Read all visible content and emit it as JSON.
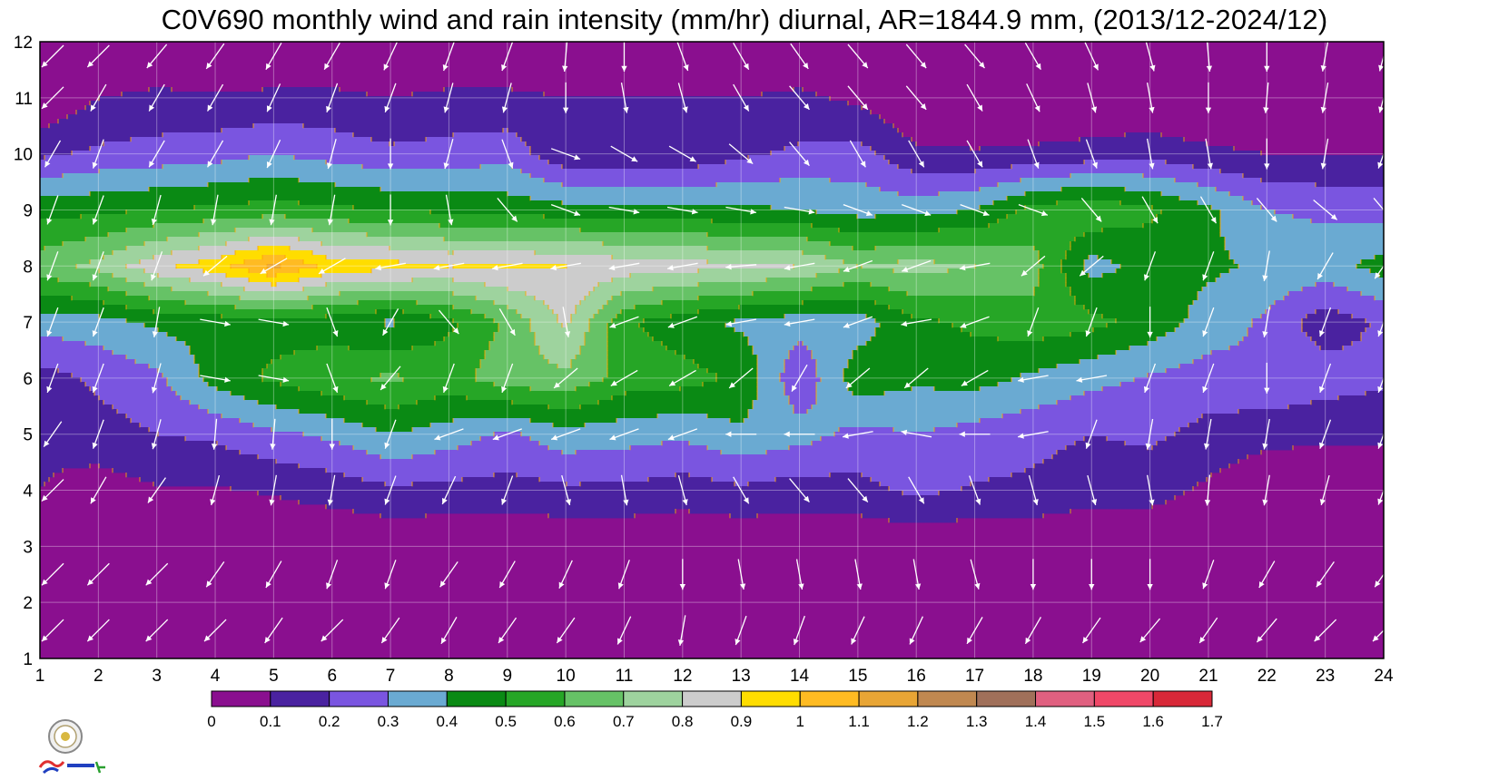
{
  "chart_data": {
    "type": "heatmap",
    "title": "C0V690 monthly wind and rain intensity (mm/hr) diurnal, AR=1844.9 mm, (2013/12-2024/12)",
    "xlabel": "",
    "ylabel": "",
    "x": [
      1,
      2,
      3,
      4,
      5,
      6,
      7,
      8,
      9,
      10,
      11,
      12,
      13,
      14,
      15,
      16,
      17,
      18,
      19,
      20,
      21,
      22,
      23,
      24
    ],
    "y": [
      1,
      2,
      3,
      4,
      5,
      6,
      7,
      8,
      9,
      10,
      11,
      12
    ],
    "xlim": [
      1,
      24
    ],
    "ylim": [
      1,
      12
    ],
    "grid": true,
    "colorbar": {
      "placement": "bottom",
      "levels": [
        0,
        0.1,
        0.2,
        0.3,
        0.4,
        0.5,
        0.6,
        0.7,
        0.8,
        0.9,
        1,
        1.1,
        1.2,
        1.3,
        1.4,
        1.5,
        1.6,
        1.7
      ],
      "labels": [
        "0",
        "0.1",
        "0.2",
        "0.3",
        "0.4",
        "0.5",
        "0.6",
        "0.7",
        "0.8",
        "0.9",
        "1",
        "1.1",
        "1.2",
        "1.3",
        "1.4",
        "1.5",
        "1.6",
        "1.7"
      ],
      "colors": [
        "#8a0f8f",
        "#4a22a0",
        "#7a55e0",
        "#6aaad2",
        "#0a8a14",
        "#26a626",
        "#66c266",
        "#9ed39e",
        "#cccccc",
        "#ffdd00",
        "#ffbb22",
        "#e8a535",
        "#c08850",
        "#a0705a",
        "#e06080",
        "#f04868",
        "#d82838"
      ]
    },
    "contour_line_color": "#ffa500",
    "rows": [
      [
        0.0,
        0.0,
        0.0,
        0.0,
        0.0,
        0.0,
        0.0,
        0.0,
        0.0,
        0.0,
        0.0,
        0.0,
        0.0,
        0.0,
        0.0,
        0.0,
        0.0,
        0.0,
        0.0,
        0.0,
        0.0,
        0.0,
        0.0,
        0.0
      ],
      [
        0.0,
        0.0,
        0.0,
        0.0,
        0.0,
        0.0,
        0.0,
        0.0,
        0.0,
        0.0,
        0.0,
        0.0,
        0.0,
        0.0,
        0.0,
        0.0,
        0.0,
        0.0,
        0.0,
        0.0,
        0.0,
        0.0,
        0.0,
        0.0
      ],
      [
        0.0,
        0.0,
        0.0,
        0.0,
        0.01,
        0.01,
        0.01,
        0.01,
        0.01,
        0.01,
        0.01,
        0.01,
        0.01,
        0.02,
        0.01,
        0.02,
        0.01,
        0.01,
        0.01,
        0.01,
        0.01,
        0.0,
        0.0,
        0.0
      ],
      [
        0.1,
        0.05,
        0.09,
        0.09,
        0.11,
        0.14,
        0.18,
        0.17,
        0.16,
        0.18,
        0.18,
        0.15,
        0.18,
        0.15,
        0.17,
        0.22,
        0.19,
        0.18,
        0.14,
        0.14,
        0.08,
        0.0,
        0.0,
        0.0
      ],
      [
        0.12,
        0.16,
        0.2,
        0.22,
        0.28,
        0.32,
        0.4,
        0.35,
        0.28,
        0.36,
        0.34,
        0.32,
        0.38,
        0.34,
        0.27,
        0.3,
        0.26,
        0.23,
        0.2,
        0.22,
        0.17,
        0.14,
        0.12,
        0.12
      ],
      [
        0.16,
        0.22,
        0.28,
        0.44,
        0.52,
        0.58,
        0.62,
        0.56,
        0.66,
        0.68,
        0.56,
        0.54,
        0.48,
        0.22,
        0.46,
        0.42,
        0.44,
        0.38,
        0.33,
        0.29,
        0.25,
        0.28,
        0.25,
        0.22
      ],
      [
        0.34,
        0.36,
        0.42,
        0.44,
        0.46,
        0.44,
        0.38,
        0.48,
        0.62,
        0.82,
        0.52,
        0.44,
        0.38,
        0.34,
        0.35,
        0.48,
        0.52,
        0.56,
        0.53,
        0.46,
        0.36,
        0.28,
        0.14,
        0.22
      ],
      [
        0.66,
        0.73,
        0.87,
        0.96,
        1.12,
        0.96,
        0.94,
        0.9,
        0.92,
        0.9,
        0.86,
        0.84,
        0.82,
        0.8,
        0.7,
        0.74,
        0.7,
        0.64,
        0.36,
        0.44,
        0.42,
        0.38,
        0.36,
        0.44
      ],
      [
        0.46,
        0.48,
        0.5,
        0.52,
        0.54,
        0.52,
        0.5,
        0.48,
        0.46,
        0.44,
        0.44,
        0.42,
        0.42,
        0.4,
        0.36,
        0.36,
        0.4,
        0.54,
        0.58,
        0.52,
        0.42,
        0.3,
        0.28,
        0.26
      ],
      [
        0.18,
        0.22,
        0.24,
        0.26,
        0.3,
        0.26,
        0.22,
        0.24,
        0.26,
        0.12,
        0.12,
        0.12,
        0.18,
        0.22,
        0.24,
        0.12,
        0.11,
        0.12,
        0.14,
        0.16,
        0.12,
        0.1,
        0.1,
        0.1
      ],
      [
        0.0,
        0.1,
        0.12,
        0.11,
        0.12,
        0.12,
        0.1,
        0.12,
        0.12,
        0.1,
        0.1,
        0.1,
        0.1,
        0.12,
        0.08,
        0.0,
        0.0,
        0.0,
        0.0,
        0.0,
        0.0,
        0.0,
        0.0,
        0.0
      ],
      [
        0.0,
        0.0,
        0.0,
        0.0,
        0.0,
        0.0,
        0.0,
        0.0,
        0.0,
        0.0,
        0.0,
        0.0,
        0.0,
        0.0,
        0.0,
        0.0,
        0.0,
        0.0,
        0.0,
        0.0,
        0.0,
        0.0,
        0.0,
        0.0
      ]
    ],
    "wind_note": "white arrows show monthly diurnal wind direction",
    "winds": [
      {
        "y": 1.5,
        "angles": [
          225,
          225,
          225,
          225,
          215,
          225,
          215,
          210,
          215,
          215,
          205,
          190,
          200,
          200,
          205,
          205,
          210,
          210,
          215,
          220,
          215,
          220,
          225,
          225
        ]
      },
      {
        "y": 2.5,
        "angles": [
          225,
          225,
          225,
          215,
          210,
          200,
          200,
          215,
          210,
          205,
          200,
          180,
          170,
          170,
          170,
          170,
          165,
          180,
          180,
          180,
          200,
          210,
          215,
          215
        ]
      },
      {
        "y": 4.0,
        "angles": [
          225,
          210,
          215,
          195,
          190,
          190,
          200,
          205,
          200,
          165,
          170,
          165,
          150,
          140,
          140,
          150,
          160,
          165,
          165,
          170,
          185,
          190,
          195,
          200
        ]
      },
      {
        "y": 5.0,
        "angles": [
          215,
          200,
          195,
          185,
          185,
          180,
          200,
          250,
          250,
          250,
          250,
          250,
          270,
          270,
          260,
          280,
          270,
          260,
          200,
          190,
          190,
          190,
          200,
          200
        ]
      },
      {
        "y": 6.0,
        "angles": [
          200,
          200,
          195,
          100,
          100,
          160,
          220,
          200,
          200,
          230,
          240,
          240,
          230,
          210,
          230,
          230,
          240,
          260,
          260,
          200,
          200,
          180,
          200,
          200
        ]
      },
      {
        "y": 7.0,
        "angles": [
          200,
          200,
          190,
          100,
          100,
          160,
          210,
          140,
          150,
          170,
          250,
          250,
          260,
          260,
          250,
          260,
          250,
          200,
          200,
          180,
          200,
          190,
          200,
          200
        ]
      },
      {
        "y": 8.0,
        "angles": [
          200,
          200,
          200,
          230,
          240,
          240,
          260,
          260,
          260,
          260,
          260,
          260,
          265,
          260,
          250,
          250,
          260,
          230,
          230,
          200,
          200,
          190,
          210,
          215
        ]
      },
      {
        "y": 9.0,
        "angles": [
          200,
          200,
          195,
          190,
          190,
          190,
          180,
          170,
          140,
          110,
          100,
          100,
          100,
          100,
          110,
          110,
          110,
          110,
          140,
          150,
          150,
          140,
          130,
          140
        ]
      },
      {
        "y": 10.0,
        "angles": [
          210,
          200,
          210,
          210,
          205,
          195,
          180,
          195,
          160,
          110,
          120,
          120,
          130,
          140,
          150,
          150,
          150,
          160,
          160,
          170,
          170,
          180,
          190,
          200
        ]
      },
      {
        "y": 11.0,
        "angles": [
          225,
          210,
          210,
          210,
          205,
          200,
          200,
          195,
          195,
          180,
          170,
          165,
          150,
          140,
          140,
          140,
          150,
          155,
          165,
          170,
          180,
          185,
          190,
          195
        ]
      },
      {
        "y": 12.0,
        "angles": [
          225,
          225,
          220,
          215,
          210,
          210,
          205,
          200,
          200,
          185,
          180,
          160,
          150,
          145,
          140,
          140,
          140,
          150,
          155,
          165,
          175,
          180,
          190,
          195
        ]
      }
    ]
  }
}
